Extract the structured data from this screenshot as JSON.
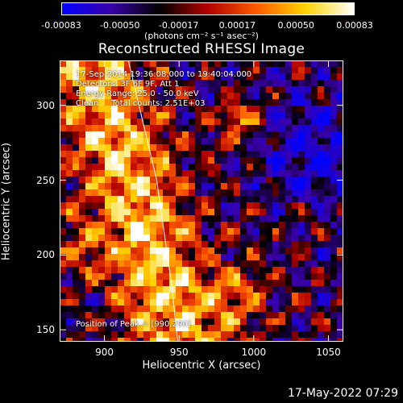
{
  "colorbar": {
    "tick_labels": [
      "-0.00083",
      "-0.00050",
      "-0.00017",
      "0.00017",
      "0.00050",
      "0.00083"
    ],
    "units_label": "(photons cm⁻² s⁻¹ asec⁻²)",
    "colors": [
      "#0000ff",
      "#3a00a8",
      "#000000",
      "#b40000",
      "#ff5a00",
      "#ffd200",
      "#ffffff"
    ]
  },
  "chart_data": {
    "type": "heatmap",
    "title": "Reconstructed RHESSI Image",
    "xlabel": "Heliocentric X (arcsec)",
    "ylabel": "Heliocentric Y (arcsec)",
    "xlim": [
      870,
      1060
    ],
    "ylim": [
      142,
      330
    ],
    "x_ticks": [
      "900",
      "950",
      "1000",
      "1050"
    ],
    "y_ticks": [
      "150",
      "200",
      "250",
      "300"
    ],
    "x_tick_values": [
      900,
      950,
      1000,
      1050
    ],
    "y_tick_values": [
      150,
      200,
      250,
      300
    ],
    "value_range": [
      -0.00083,
      0.00083
    ],
    "limb_arc": [
      [
        916,
        330
      ],
      [
        935,
        250
      ],
      [
        945,
        180
      ],
      [
        949,
        142
      ]
    ],
    "peak": [
      990,
      290
    ],
    "annotations": {
      "time": "17-Sep-2014 19:36:08.000 to 19:40:04.000",
      "detectors": "Detectors: 3F 6F 9F, Att 1",
      "energy": "Energy Range: 25.0 - 50.0 keV",
      "method": "Clean     Total counts: 2.51E+03",
      "peak_text": "Position of Peak = [990,290]"
    }
  },
  "footer": {
    "date": "17-May-2022 07:29"
  }
}
